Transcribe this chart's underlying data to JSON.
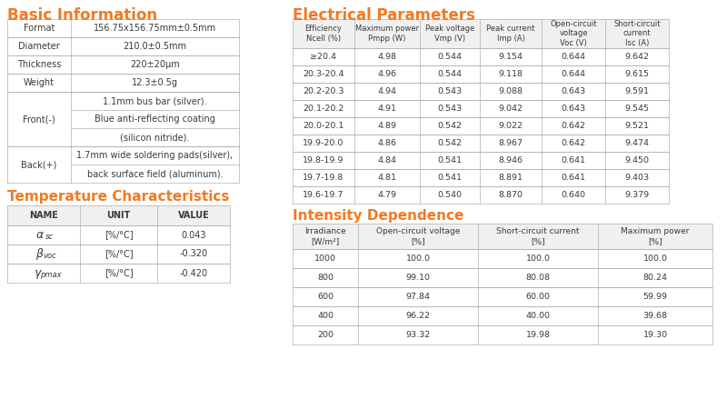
{
  "orange": "#F47920",
  "border_gray": "#b0b0b0",
  "header_gray": "#f0f0f0",
  "text_dark": "#3a3a3a",
  "bg_white": "#ffffff",
  "basic_info": {
    "title": "Basic Information",
    "simple_rows": [
      [
        "Format",
        "156.75x156.75mm±0.5mm"
      ],
      [
        "Diameter",
        "210.0±0.5mm"
      ],
      [
        "Thickness",
        "220±20μm"
      ],
      [
        "Weight",
        "12.3±0.5g"
      ]
    ],
    "front_label": "Front(-)",
    "front_rows": [
      "1.1mm bus bar (silver).",
      "Blue anti-reflecting coating",
      "(silicon nitride)."
    ],
    "back_label": "Back(+)",
    "back_rows": [
      "1.7mm wide soldering pads(silver),",
      "back surface field (aluminum)."
    ]
  },
  "temp_chars": {
    "title": "Temperature Characteristics",
    "headers": [
      "NAME",
      "UNIT",
      "VALUE"
    ],
    "rows": [
      [
        "αsc",
        "[%/°C]",
        "0.043"
      ],
      [
        "βvoc",
        "[%/°C]",
        "-0.320"
      ],
      [
        "γpmax",
        "[%/°C]",
        "-0.420"
      ]
    ]
  },
  "elec_params": {
    "title": "Electrical Parameters",
    "headers": [
      "Efficiency\nNcell (%)",
      "Maximum power\nPmpp (W)",
      "Peak voltage\nVmp (V)",
      "Peak current\nImp (A)",
      "Open-circuit\nvoltage\nVoc (V)",
      "Short-circuit\ncurrent\nIsc (A)"
    ],
    "rows": [
      [
        "≥20.4",
        "4.98",
        "0.544",
        "9.154",
        "0.644",
        "9.642"
      ],
      [
        "20.3-20.4",
        "4.96",
        "0.544",
        "9.118",
        "0.644",
        "9.615"
      ],
      [
        "20.2-20.3",
        "4.94",
        "0.543",
        "9.088",
        "0.643",
        "9.591"
      ],
      [
        "20.1-20.2",
        "4.91",
        "0.543",
        "9.042",
        "0.643",
        "9.545"
      ],
      [
        "20.0-20.1",
        "4.89",
        "0.542",
        "9.022",
        "0.642",
        "9.521"
      ],
      [
        "19.9-20.0",
        "4.86",
        "0.542",
        "8.967",
        "0.642",
        "9.474"
      ],
      [
        "19.8-19.9",
        "4.84",
        "0.541",
        "8.946",
        "0.641",
        "9.450"
      ],
      [
        "19.7-19.8",
        "4.81",
        "0.541",
        "8.891",
        "0.641",
        "9.403"
      ],
      [
        "19.6-19.7",
        "4.79",
        "0.540",
        "8.870",
        "0.640",
        "9.379"
      ]
    ]
  },
  "intensity_dep": {
    "title": "Intensity Dependence",
    "headers": [
      "Irradiance\n[W/m²]",
      "Open-circuit voltage\n[%]",
      "Short-circuit current\n[%]",
      "Maximum power\n[%]"
    ],
    "rows": [
      [
        "1000",
        "100.0",
        "100.0",
        "100.0"
      ],
      [
        "800",
        "99.10",
        "80.08",
        "80.24"
      ],
      [
        "600",
        "97.84",
        "60.00",
        "59.99"
      ],
      [
        "400",
        "96.22",
        "40.00",
        "39.68"
      ],
      [
        "200",
        "93.32",
        "19.98",
        "19.30"
      ]
    ]
  }
}
